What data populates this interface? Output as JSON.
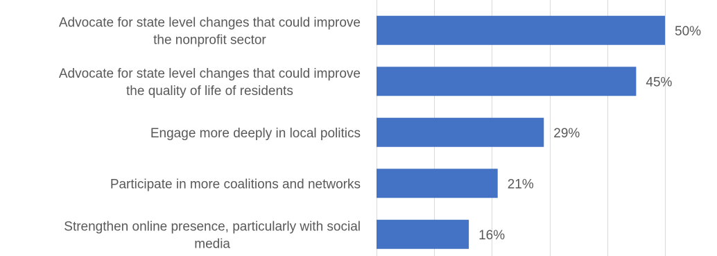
{
  "chart_data": {
    "type": "bar",
    "orientation": "horizontal",
    "categories": [
      [
        "Advocate for state level changes that could improve",
        "the nonprofit sector"
      ],
      [
        "Advocate for state level changes that could improve",
        "the quality of life of residents"
      ],
      [
        "Engage more deeply in local politics"
      ],
      [
        "Participate in more coalitions and networks"
      ],
      [
        "Strengthen online presence, particularly with social",
        "media"
      ]
    ],
    "values": [
      50,
      45,
      29,
      21,
      16
    ],
    "data_labels": [
      "50%",
      "45%",
      "29%",
      "21%",
      "16%"
    ],
    "xlim": [
      0,
      50
    ],
    "x_gridlines": [
      0,
      10,
      20,
      30,
      40,
      50
    ],
    "grid": true,
    "legend": "none",
    "bar_color": "#4472c4",
    "title": "",
    "xlabel": "",
    "ylabel": ""
  }
}
